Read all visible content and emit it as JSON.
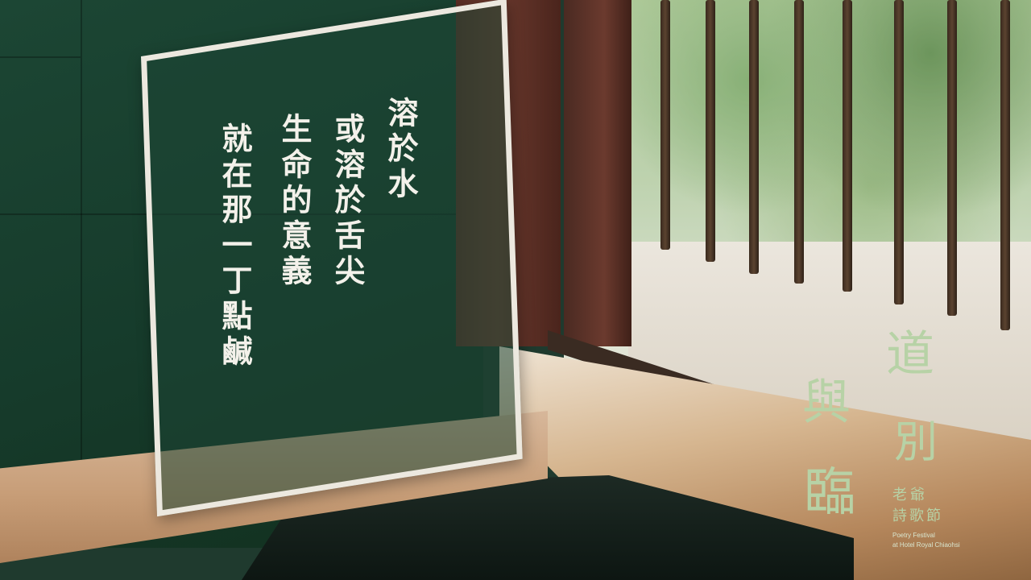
{
  "poem": {
    "lines": [
      "溶於水",
      "或溶於舌尖",
      "生命的意義",
      "就在那一丁點鹹"
    ]
  },
  "logo": {
    "title_chars": [
      "道",
      "別",
      "與",
      "臨"
    ],
    "festival_chars": [
      "老爺",
      "詩歌節"
    ],
    "english_line1": "Poetry Festival",
    "english_line2": "at Hotel Royal Chiaohsi"
  },
  "colors": {
    "wall": "#1c4634",
    "wood": "#c79d77",
    "frame": "#ece8df",
    "logo": "#b7d2a6"
  }
}
